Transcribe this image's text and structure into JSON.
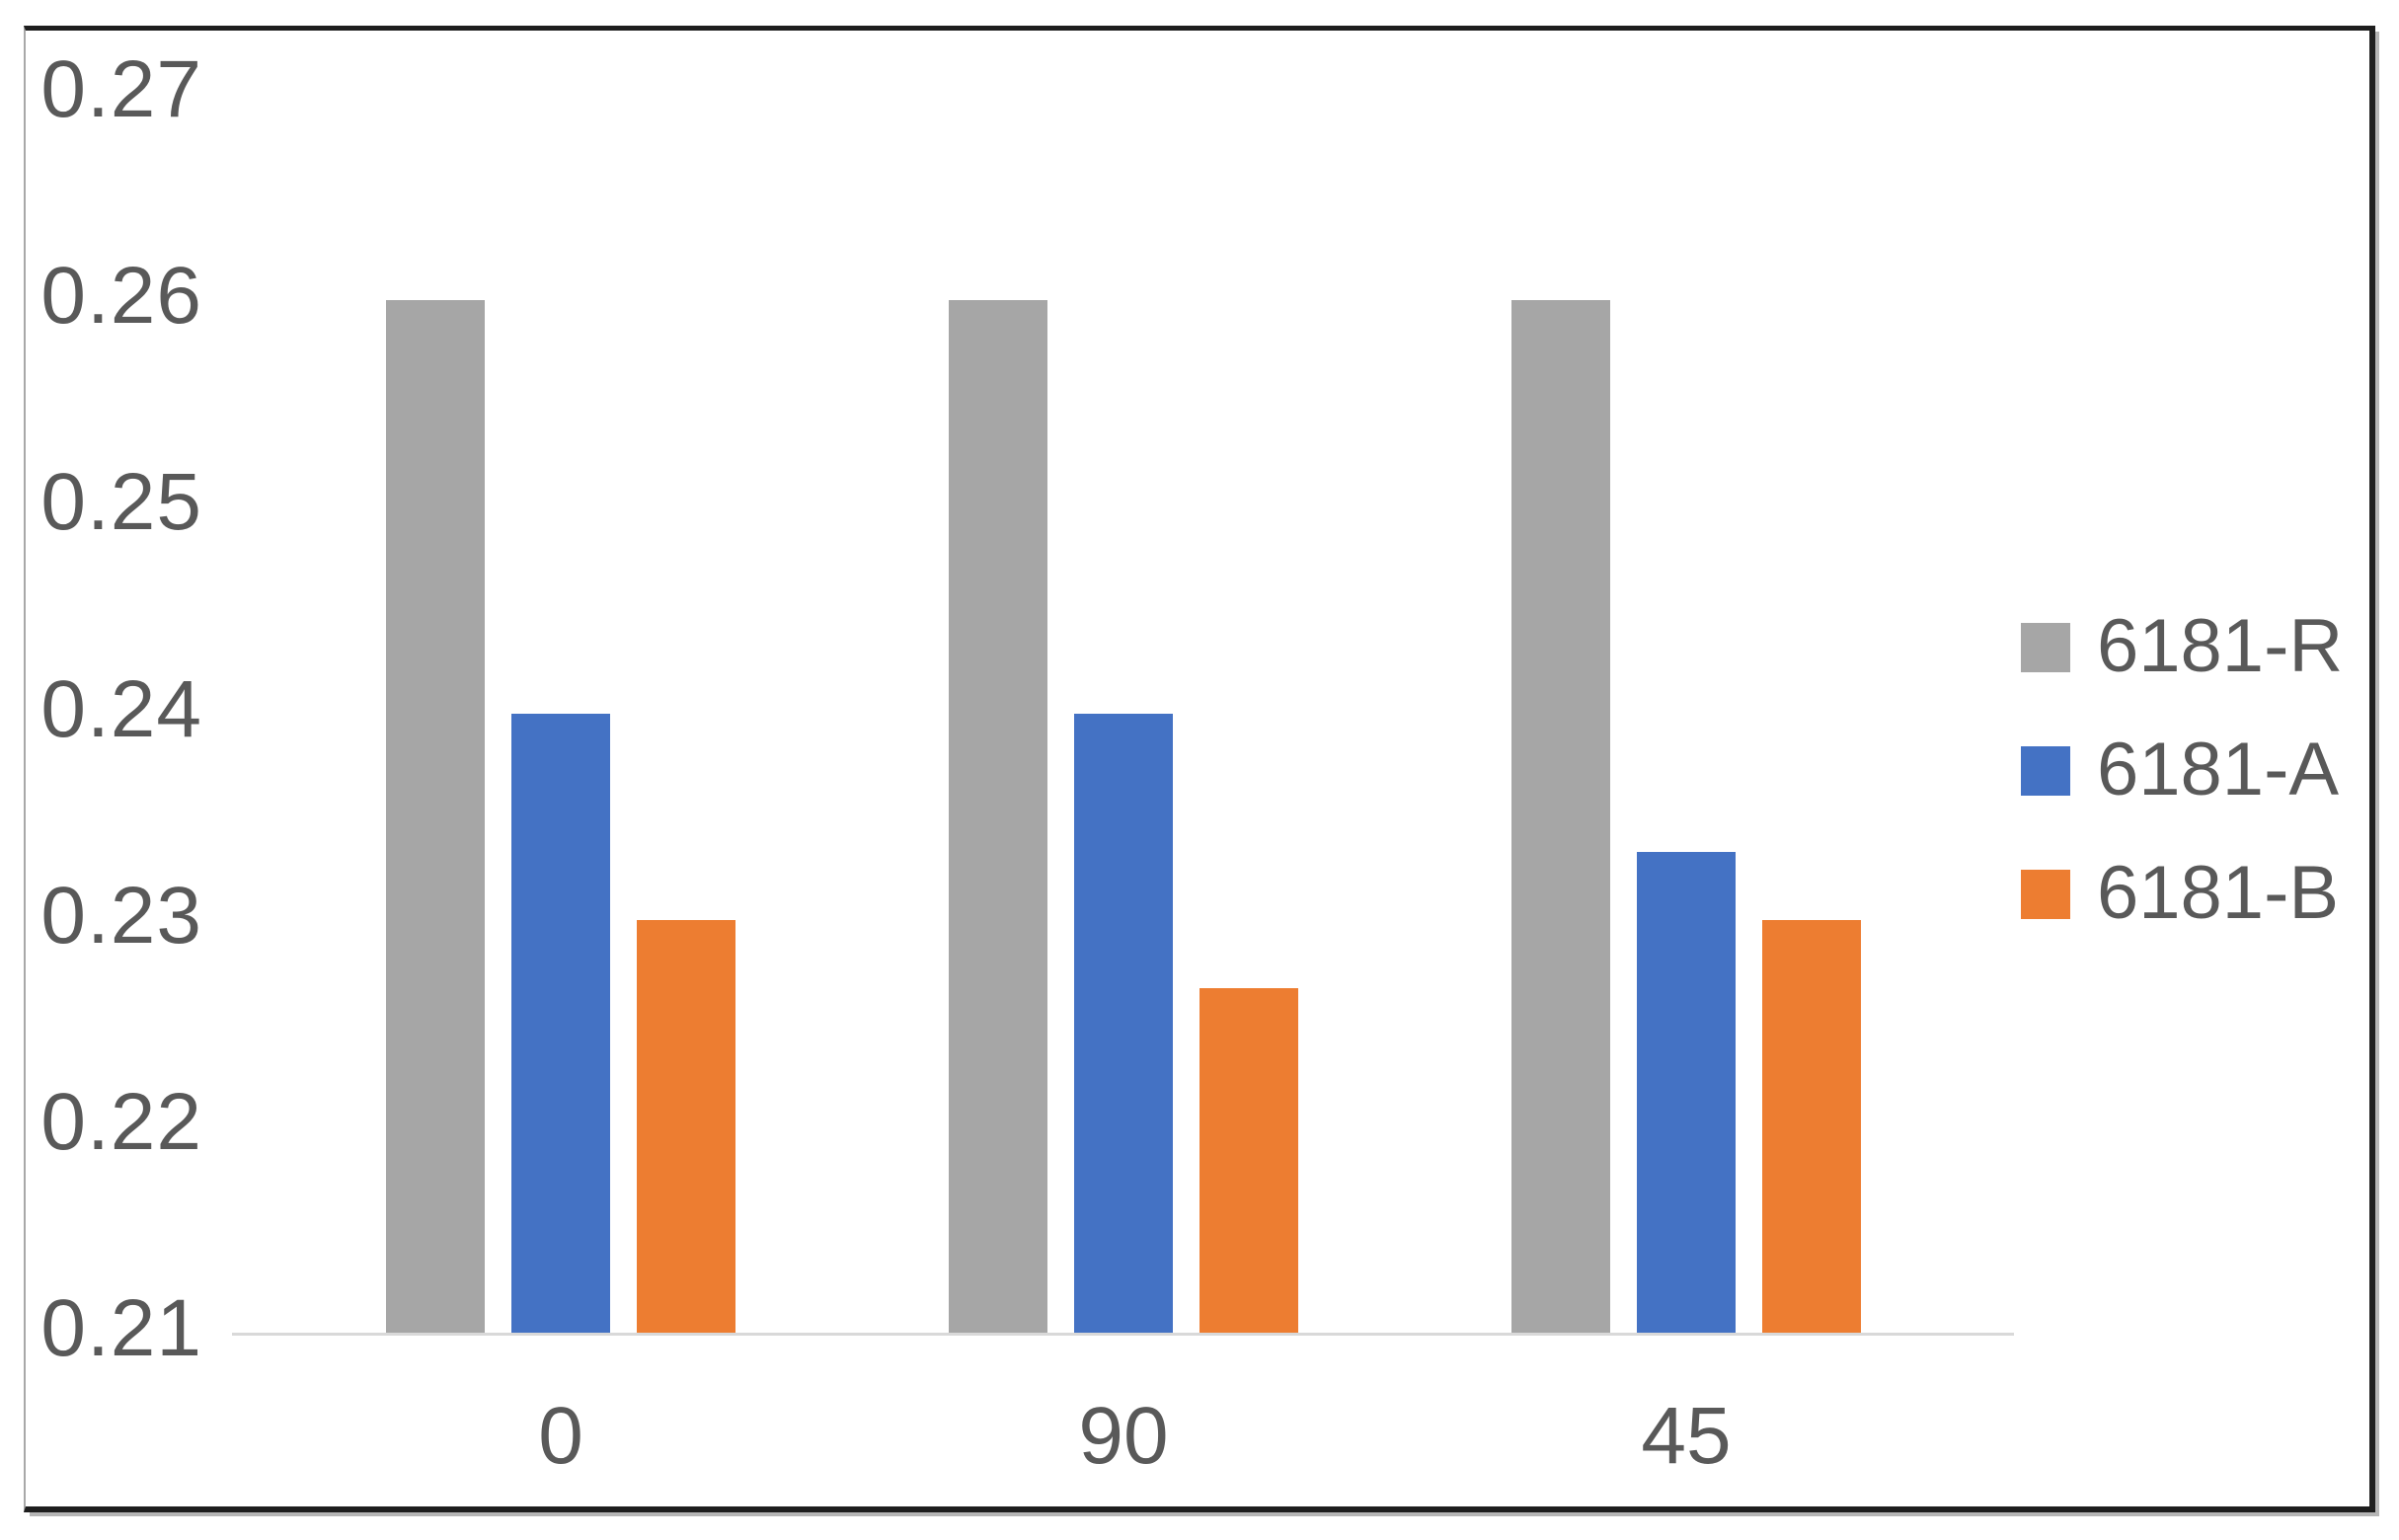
{
  "chart_data": {
    "type": "bar",
    "title": "",
    "xlabel": "",
    "ylabel": "",
    "categories": [
      "0",
      "90",
      "45"
    ],
    "series": [
      {
        "name": "6181-R",
        "color": "#a6a6a6",
        "values": [
          0.26,
          0.26,
          0.26
        ]
      },
      {
        "name": "6181-A",
        "color": "#4472c4",
        "values": [
          0.24,
          0.24,
          0.2333
        ]
      },
      {
        "name": "6181-B",
        "color": "#ed7d31",
        "values": [
          0.23,
          0.2267,
          0.23
        ]
      }
    ],
    "ylim": [
      0.21,
      0.27
    ],
    "ytick_step": 0.01,
    "ytick_labels": [
      "0.21",
      "0.22",
      "0.23",
      "0.24",
      "0.25",
      "0.26",
      "0.27"
    ],
    "grid": false,
    "legend_position": "right-center",
    "legend_marker": "square",
    "axis_text_color": "#595959",
    "axis_line_color": "#d9d9d9",
    "frame_border_color": "#1e1e1e"
  }
}
